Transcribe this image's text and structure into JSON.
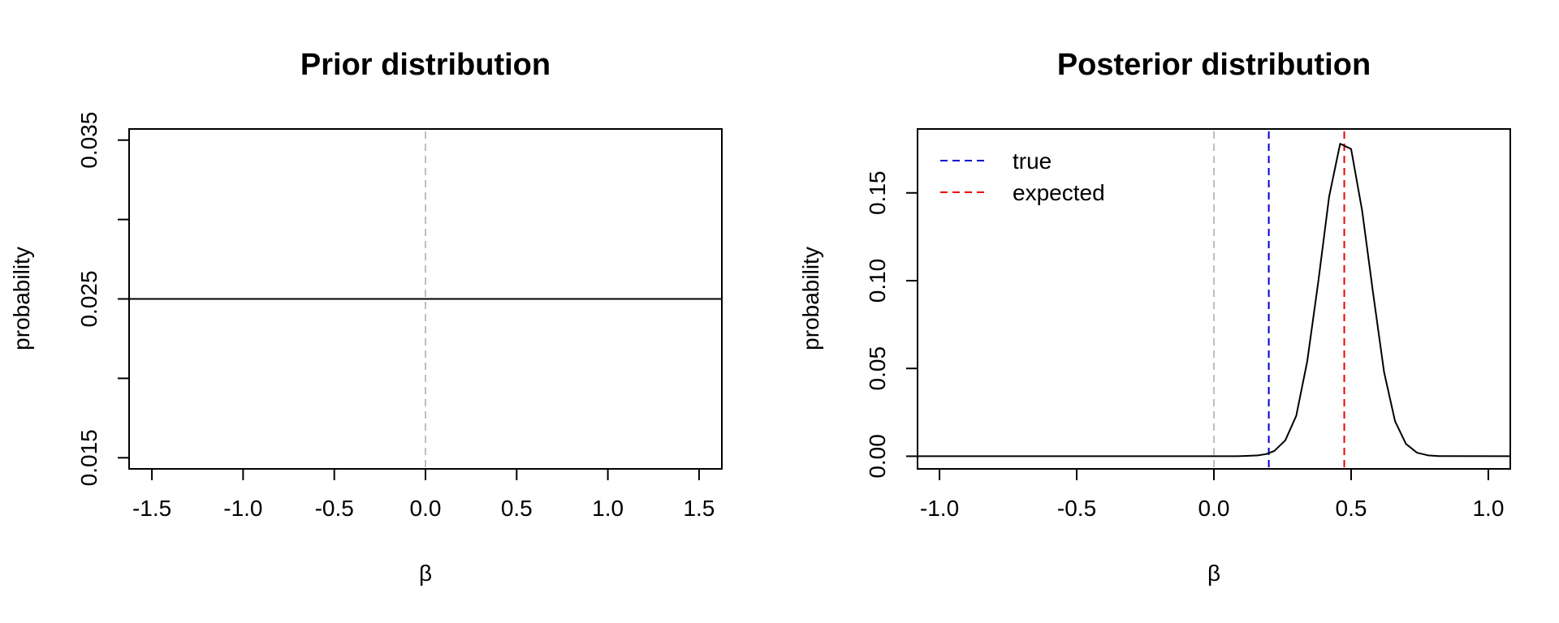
{
  "chart_data": [
    {
      "type": "line",
      "title": "Prior distribution",
      "xlabel": "β",
      "ylabel": "probability",
      "xlim": [
        -1.625,
        1.625
      ],
      "ylim": [
        0.0143,
        0.0357
      ],
      "xticks": [
        -1.5,
        -1.0,
        -0.5,
        0.0,
        0.5,
        1.0,
        1.5
      ],
      "xtick_labels": [
        "-1.5",
        "-1.0",
        "-0.5",
        "0.0",
        "0.5",
        "1.0",
        "1.5"
      ],
      "yticks": [
        0.015,
        0.02,
        0.025,
        0.03,
        0.035
      ],
      "ytick_labels": [
        "0.015",
        "",
        "0.025",
        "",
        "0.035"
      ],
      "grid": false,
      "series": [
        {
          "color": "#000000",
          "style": "solid",
          "x": [
            -1.625,
            1.625
          ],
          "y": [
            0.025,
            0.025
          ]
        }
      ],
      "vlines": [
        {
          "x": 0.0,
          "color": "#bebebe",
          "style": "dashed"
        }
      ],
      "legend": null
    },
    {
      "type": "line",
      "title": "Posterior distribution",
      "xlabel": "β",
      "ylabel": "probability",
      "xlim": [
        -1.08,
        1.08
      ],
      "ylim": [
        -0.0072,
        0.1864
      ],
      "xticks": [
        -1.0,
        -0.5,
        0.0,
        0.5,
        1.0
      ],
      "xtick_labels": [
        "-1.0",
        "-0.5",
        "0.0",
        "0.5",
        "1.0"
      ],
      "yticks": [
        0.0,
        0.05,
        0.1,
        0.15
      ],
      "ytick_labels": [
        "0.00",
        "0.05",
        "0.10",
        "0.15"
      ],
      "grid": false,
      "series": [
        {
          "color": "#000000",
          "style": "solid",
          "x": [
            -1.08,
            0.08,
            0.12,
            0.16,
            0.19,
            0.22,
            0.26,
            0.3,
            0.34,
            0.38,
            0.42,
            0.46,
            0.5,
            0.54,
            0.58,
            0.62,
            0.66,
            0.7,
            0.74,
            0.78,
            0.82,
            1.08
          ],
          "y": [
            0.0,
            0.0,
            0.0002,
            0.0005,
            0.0012,
            0.003,
            0.009,
            0.023,
            0.054,
            0.099,
            0.148,
            0.178,
            0.175,
            0.14,
            0.093,
            0.048,
            0.02,
            0.007,
            0.002,
            0.0005,
            0.0001,
            0.0
          ]
        }
      ],
      "vlines": [
        {
          "x": 0.0,
          "color": "#bebebe",
          "style": "dashed"
        },
        {
          "x": 0.2,
          "color": "#0000cd",
          "style": "dashed",
          "label": "true"
        },
        {
          "x": 0.475,
          "color": "#ee0000",
          "style": "dashed",
          "label": "expected"
        }
      ],
      "legend": {
        "position": "top-left",
        "entries": [
          {
            "label": "true",
            "color": "#0000cd",
            "style": "dashed"
          },
          {
            "label": "expected",
            "color": "#ee0000",
            "style": "dashed"
          }
        ]
      }
    }
  ]
}
